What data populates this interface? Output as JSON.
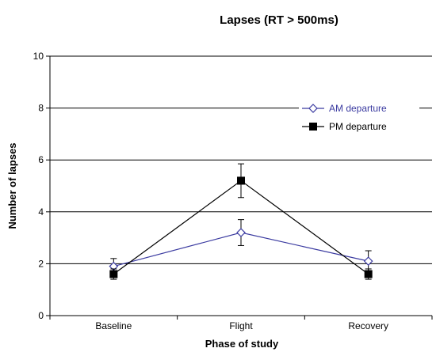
{
  "chart_data": {
    "type": "line",
    "title": "Lapses (RT > 500ms)",
    "xlabel": "Phase of study",
    "ylabel": "Number of lapses",
    "categories": [
      "Baseline",
      "Flight",
      "Recovery"
    ],
    "ylim": [
      0,
      10
    ],
    "yticks": [
      0,
      2,
      4,
      6,
      8,
      10
    ],
    "grid": true,
    "legend_position": "right",
    "series": [
      {
        "name": "AM departure",
        "color": "#3a3aa0",
        "marker": "open-diamond",
        "values": [
          1.9,
          3.2,
          2.1
        ],
        "error": [
          0.3,
          0.5,
          0.4
        ]
      },
      {
        "name": "PM departure",
        "color": "#000000",
        "marker": "filled-square",
        "values": [
          1.6,
          5.2,
          1.6
        ],
        "error": [
          0.2,
          0.65,
          0.2
        ]
      }
    ]
  }
}
